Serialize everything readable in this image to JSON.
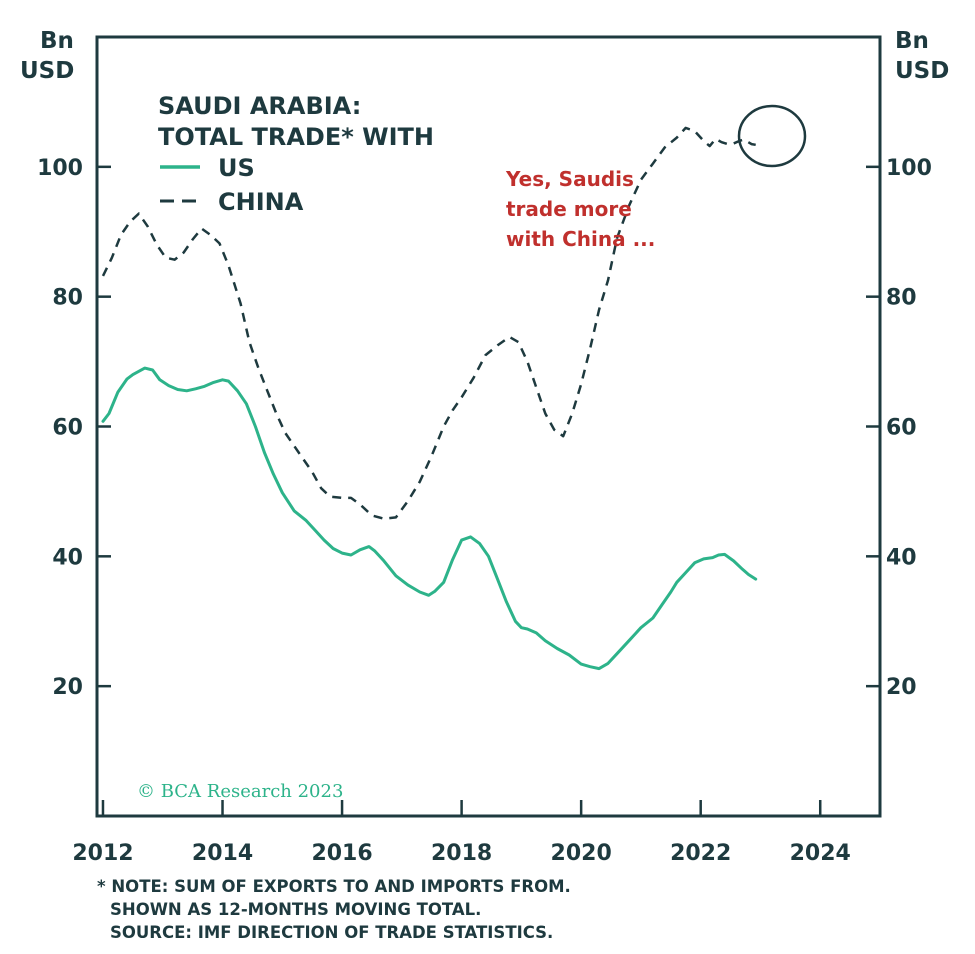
{
  "chart_data": {
    "type": "line",
    "title": "SAUDI ARABIA:",
    "subtitle": "TOTAL TRADE* WITH",
    "y_unit_line1": "Bn",
    "y_unit_line2": "USD",
    "xlim": [
      2011.9,
      2025.0
    ],
    "ylim": [
      0,
      120
    ],
    "x_ticks": [
      "2012",
      "2014",
      "2016",
      "2018",
      "2020",
      "2022",
      "2024"
    ],
    "x_tick_values": [
      2012,
      2014,
      2016,
      2018,
      2020,
      2022,
      2024
    ],
    "y_ticks": [
      "20",
      "40",
      "60",
      "80",
      "100"
    ],
    "y_tick_values": [
      20,
      40,
      60,
      80,
      100
    ],
    "series": [
      {
        "name": "US",
        "color": "#2db38a",
        "style": "solid",
        "x": [
          2012.0,
          2012.1,
          2012.25,
          2012.4,
          2012.5,
          2012.7,
          2012.83,
          2012.95,
          2013.1,
          2013.25,
          2013.4,
          2013.55,
          2013.7,
          2013.85,
          2014.0,
          2014.1,
          2014.25,
          2014.4,
          2014.55,
          2014.7,
          2014.85,
          2015.0,
          2015.2,
          2015.4,
          2015.55,
          2015.7,
          2015.85,
          2016.0,
          2016.15,
          2016.3,
          2016.45,
          2016.55,
          2016.7,
          2016.9,
          2017.1,
          2017.3,
          2017.45,
          2017.55,
          2017.7,
          2017.85,
          2018.0,
          2018.15,
          2018.3,
          2018.45,
          2018.6,
          2018.75,
          2018.9,
          2019.0,
          2019.1,
          2019.25,
          2019.4,
          2019.6,
          2019.8,
          2020.0,
          2020.15,
          2020.3,
          2020.45,
          2020.6,
          2020.8,
          2021.0,
          2021.2,
          2021.35,
          2021.5,
          2021.6,
          2021.75,
          2021.9,
          2022.05,
          2022.2,
          2022.3,
          2022.4,
          2022.55,
          2022.7,
          2022.8,
          2022.92
        ],
        "values": [
          60.8,
          62.0,
          65.3,
          67.3,
          68.0,
          69.0,
          68.7,
          67.2,
          66.3,
          65.7,
          65.5,
          65.8,
          66.2,
          66.8,
          67.2,
          67.0,
          65.5,
          63.5,
          60.0,
          56.0,
          52.7,
          49.8,
          47.0,
          45.5,
          44.0,
          42.5,
          41.2,
          40.5,
          40.2,
          41.0,
          41.5,
          40.8,
          39.3,
          37.0,
          35.6,
          34.5,
          34.0,
          34.6,
          36.0,
          39.5,
          42.5,
          43.0,
          42.0,
          40.0,
          36.5,
          33.0,
          30.0,
          29.0,
          28.8,
          28.2,
          27.0,
          25.8,
          24.8,
          23.4,
          23.0,
          22.7,
          23.5,
          25.0,
          27.0,
          29.0,
          30.5,
          32.5,
          34.5,
          36.0,
          37.5,
          39.0,
          39.6,
          39.8,
          40.2,
          40.3,
          39.3,
          38.0,
          37.2,
          36.5
        ]
      },
      {
        "name": "CHINA",
        "color": "#1e3a3f",
        "style": "dashed",
        "x": [
          2012.0,
          2012.15,
          2012.3,
          2012.45,
          2012.6,
          2012.75,
          2012.9,
          2013.05,
          2013.2,
          2013.35,
          2013.5,
          2013.65,
          2013.8,
          2013.95,
          2014.1,
          2014.3,
          2014.45,
          2014.6,
          2014.75,
          2014.9,
          2015.05,
          2015.2,
          2015.35,
          2015.5,
          2015.65,
          2015.8,
          2016.0,
          2016.15,
          2016.3,
          2016.5,
          2016.7,
          2016.9,
          2017.1,
          2017.3,
          2017.5,
          2017.7,
          2017.85,
          2018.0,
          2018.2,
          2018.4,
          2018.6,
          2018.8,
          2018.95,
          2019.1,
          2019.25,
          2019.4,
          2019.55,
          2019.7,
          2019.85,
          2020.0,
          2020.15,
          2020.3,
          2020.45,
          2020.6,
          2020.8,
          2021.0,
          2021.2,
          2021.4,
          2021.6,
          2021.75,
          2021.9,
          2022.05,
          2022.15,
          2022.25,
          2022.35,
          2022.45,
          2022.55,
          2022.65,
          2022.72,
          2022.78,
          2022.85,
          2022.92
        ],
        "values": [
          83.2,
          86.0,
          89.5,
          91.5,
          92.8,
          90.8,
          88.0,
          86.0,
          85.7,
          86.8,
          88.8,
          90.5,
          89.5,
          88.2,
          84.8,
          79.0,
          73.0,
          69.0,
          65.5,
          62.0,
          59.0,
          57.0,
          55.0,
          53.0,
          50.5,
          49.2,
          49.0,
          49.0,
          48.0,
          46.3,
          45.8,
          46.0,
          48.5,
          51.5,
          55.5,
          60.0,
          62.5,
          64.5,
          67.5,
          71.0,
          72.5,
          73.8,
          73.0,
          70.0,
          66.0,
          62.0,
          59.5,
          58.5,
          62.0,
          66.5,
          72.0,
          78.0,
          82.5,
          89.0,
          94.0,
          98.0,
          100.5,
          103.0,
          104.5,
          106.0,
          105.5,
          104.0,
          103.2,
          104.3,
          103.8,
          103.5,
          103.6,
          104.0,
          104.2,
          103.9,
          103.5,
          103.4
        ]
      }
    ],
    "legend": {
      "position": "top-left",
      "entries": [
        "US",
        "CHINA"
      ]
    },
    "annotation": {
      "lines": [
        "Yes, Saudis",
        "trade more",
        "with China ..."
      ],
      "color": "#c0302d"
    },
    "grid": false
  },
  "footnote": {
    "line1": "* NOTE: SUM OF EXPORTS TO AND IMPORTS FROM.",
    "line2": "SHOWN AS 12-MONTHS MOVING TOTAL.",
    "line3": "SOURCE: IMF DIRECTION OF TRADE STATISTICS."
  },
  "credit": "© BCA Research 2023"
}
